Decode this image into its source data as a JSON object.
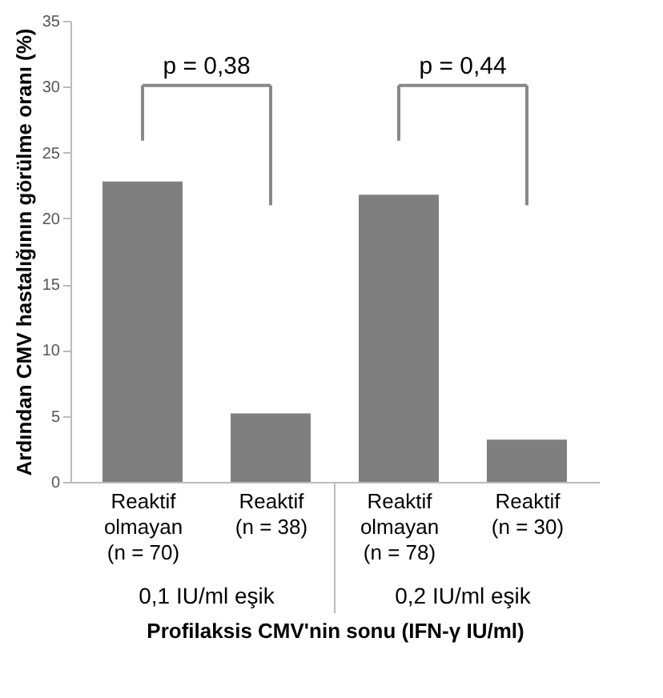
{
  "chart_data": {
    "type": "bar",
    "ylabel": "Ardından CMV hastalığının görülme oranı (%)",
    "xlabel": "Profilaksis CMV'nin sonu (IFN-γ IU/ml)",
    "categories": [
      "Reaktif\nolmayan\n(n = 70)",
      "Reaktif\n(n = 38)",
      "Reaktif\nolmayan\n(n = 78)",
      "Reaktif\n(n = 30)"
    ],
    "values": [
      22.8,
      5.2,
      21.8,
      3.2
    ],
    "color": "#7f7f7f",
    "ylim": [
      0,
      35
    ],
    "yticks": [
      0,
      5,
      10,
      15,
      20,
      25,
      30,
      35
    ],
    "grid": false,
    "annotations": [
      "p = 0,38",
      "p = 0,44",
      "0,1 IU/ml eşik",
      "0,2 IU/ml eşik"
    ]
  }
}
